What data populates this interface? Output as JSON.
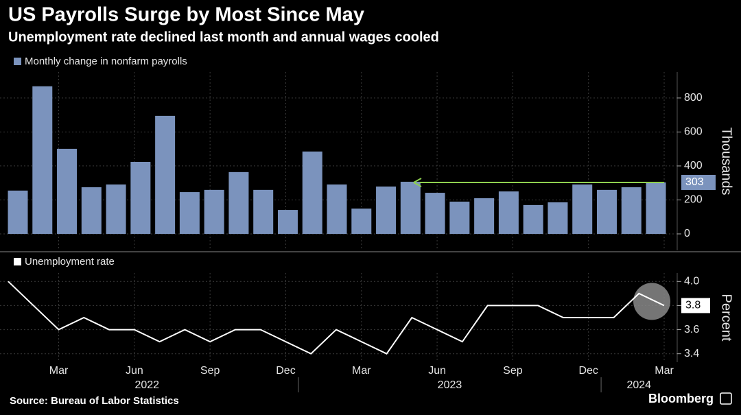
{
  "header": {
    "title": "US Payrolls Surge by Most Since May",
    "subtitle": "Unemployment rate declined last month and annual wages cooled"
  },
  "footer": {
    "source": "Source: Bureau of Labor Statistics",
    "brand": "Bloomberg"
  },
  "chart_data": [
    {
      "type": "bar",
      "legend": "Monthly change in nonfarm payrolls",
      "color": "#7b93bd",
      "y_label": "Thousands",
      "values": [
        255,
        869,
        501,
        275,
        291,
        424,
        695,
        246,
        259,
        364,
        259,
        141,
        485,
        291,
        149,
        279,
        307,
        242,
        190,
        210,
        250,
        170,
        186,
        291,
        259,
        275,
        303
      ],
      "ylim": [
        -97,
        953
      ],
      "yticks": [
        0,
        200,
        400,
        600,
        800
      ],
      "grid": true,
      "highlight_color": "#8fd14f"
    },
    {
      "type": "line",
      "legend": "Unemployment rate",
      "color": "#ffffff",
      "y_label": "Percent",
      "categories": [
        null,
        null,
        "Mar",
        null,
        null,
        "Jun",
        null,
        null,
        "Sep",
        null,
        null,
        "Dec",
        null,
        null,
        "Mar",
        null,
        null,
        "Jun",
        null,
        null,
        "Sep",
        null,
        null,
        "Dec",
        null,
        null,
        "Mar"
      ],
      "years": [
        "2022",
        "2023",
        "2024"
      ],
      "values": [
        4.0,
        3.8,
        3.6,
        3.7,
        3.6,
        3.6,
        3.5,
        3.6,
        3.5,
        3.6,
        3.6,
        3.5,
        3.4,
        3.6,
        3.5,
        3.4,
        3.7,
        3.6,
        3.5,
        3.8,
        3.8,
        3.8,
        3.7,
        3.7,
        3.7,
        3.9,
        3.8
      ],
      "ylim": [
        3.33,
        4.07
      ],
      "yticks": [
        {
          "value": 3.4,
          "label": "3.4"
        },
        {
          "value": 3.6,
          "label": "3.6"
        },
        {
          "value": 3.8,
          "label": "3.8"
        },
        {
          "value": 4,
          "label": "4.0"
        }
      ],
      "grid": true
    }
  ]
}
